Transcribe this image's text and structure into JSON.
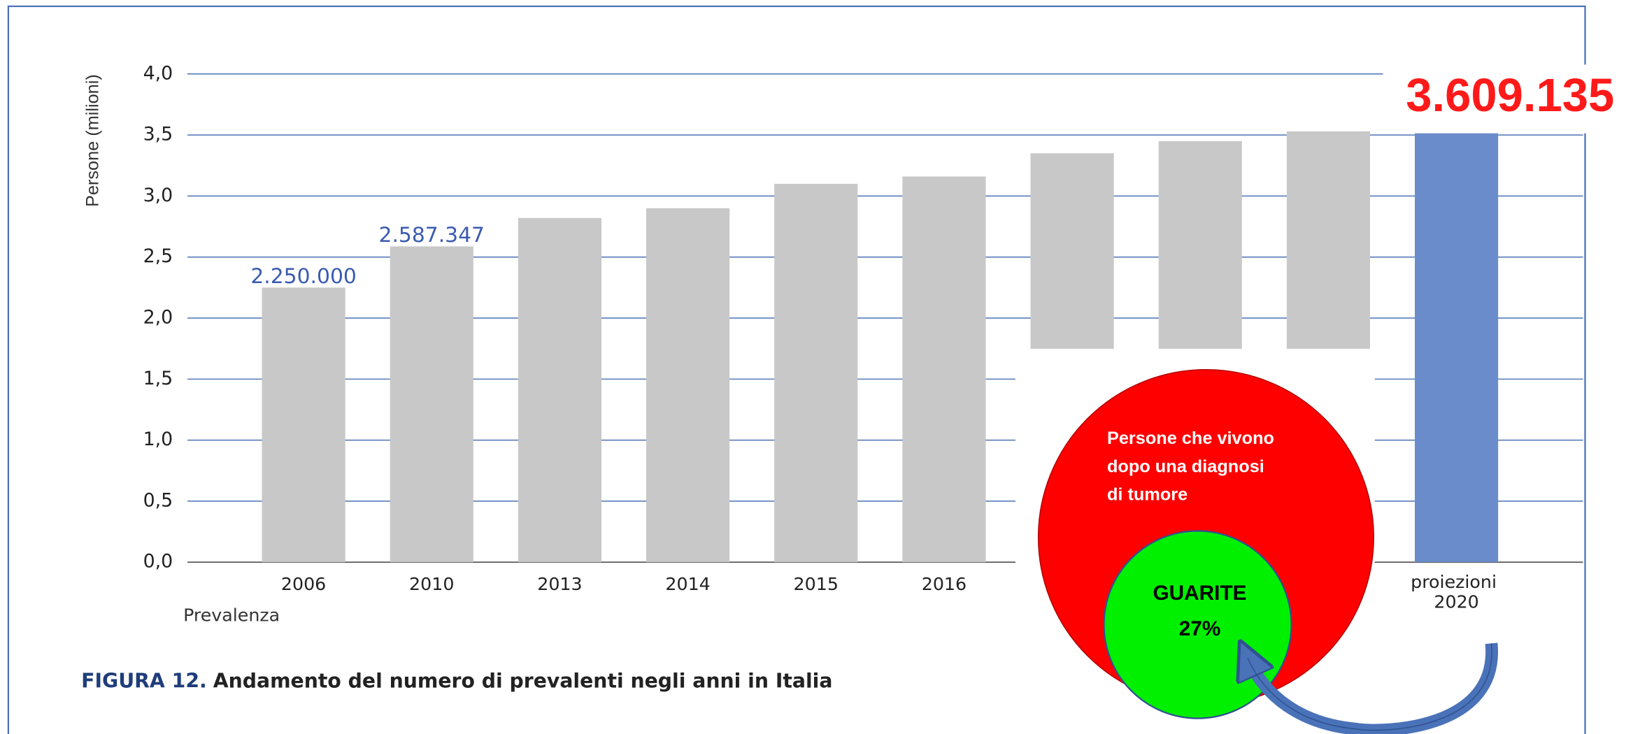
{
  "chart_data": {
    "type": "bar",
    "y_label": "Persone (milioni)",
    "x_label": "Prevalenza",
    "figure_label": "FIGURA 12.",
    "figure_caption": "Andamento del numero di prevalenti negli anni in Italia",
    "categories": [
      "2006",
      "2010",
      "2013",
      "2014",
      "2015",
      "2016",
      null,
      null,
      null,
      "proiezioni 2020"
    ],
    "values": [
      2.25,
      2.587347,
      2.82,
      2.9,
      3.1,
      3.16,
      3.35,
      3.45,
      3.53,
      3.609135
    ],
    "value_labels": [
      "2.250.000",
      "2.587.347",
      null,
      null,
      null,
      null,
      null,
      null,
      null,
      "3.609.135"
    ],
    "colors": [
      "#c8c8c8",
      "#c8c8c8",
      "#c8c8c8",
      "#c8c8c8",
      "#c8c8c8",
      "#c8c8c8",
      "#c8c8c8",
      "#c8c8c8",
      "#c8c8c8",
      "#6a8ccb"
    ],
    "ylim": [
      0,
      4
    ],
    "yticks": [
      {
        "value": 0,
        "label": "0,0"
      },
      {
        "value": 0.5,
        "label": "0,5"
      },
      {
        "value": 1,
        "label": "1,0"
      },
      {
        "value": 1.5,
        "label": "1,5"
      },
      {
        "value": 2,
        "label": "2,0"
      },
      {
        "value": 2.5,
        "label": "2,5"
      },
      {
        "value": 3,
        "label": "3,0"
      },
      {
        "value": 3.5,
        "label": "3,5"
      },
      {
        "value": 4,
        "label": "4,0"
      }
    ],
    "grid": true,
    "annotations": {
      "circle_text": [
        "Persone che vivono",
        "dopo una diagnosi",
        "di tumore"
      ],
      "inner_title": "GUARITE",
      "inner_value": "27%"
    }
  }
}
